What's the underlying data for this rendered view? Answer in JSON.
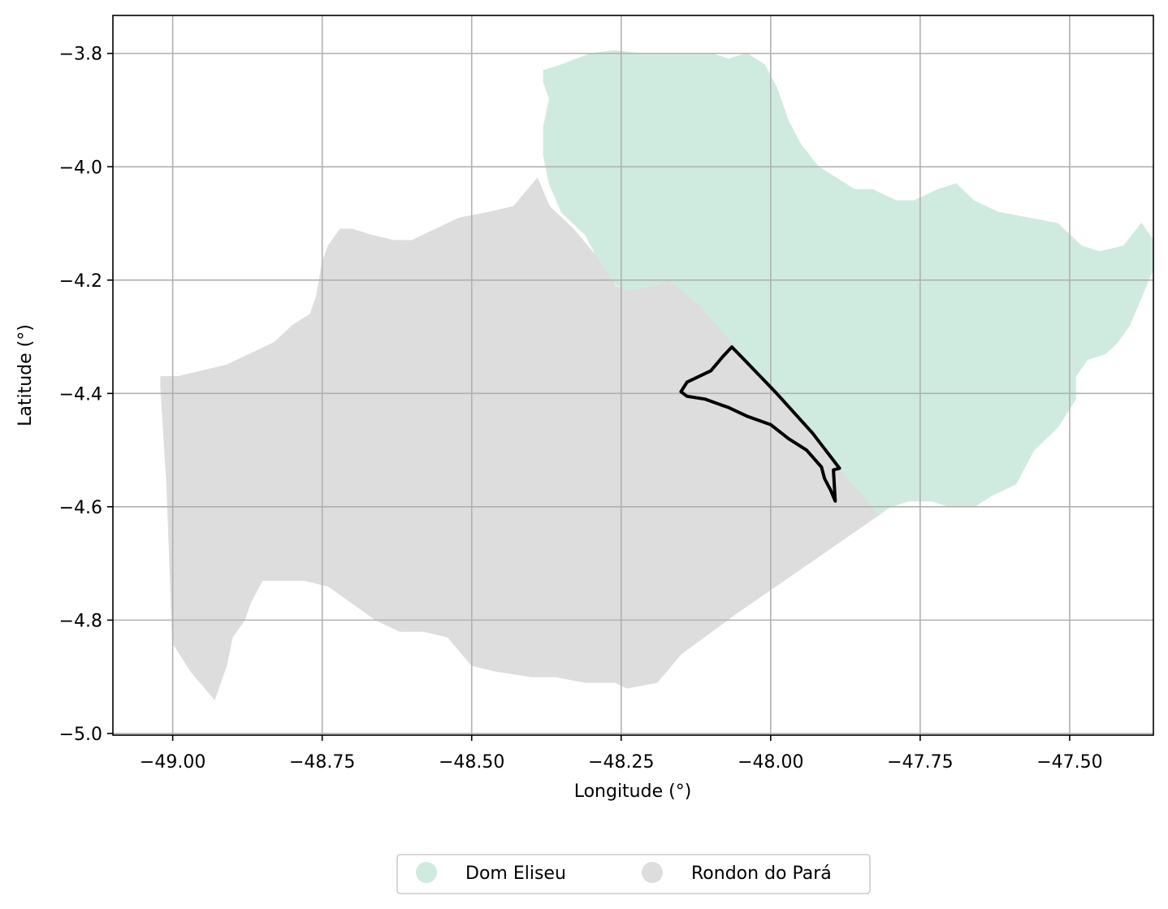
{
  "map": {
    "type": "choropleth-map",
    "xlabel": "Longitude (°)",
    "ylabel": "Latitude (°)",
    "xlim": [
      -49.1,
      -47.36
    ],
    "ylim": [
      -5.003,
      -3.733
    ],
    "x_ticks": [
      -49.0,
      -48.75,
      -48.5,
      -48.25,
      -48.0,
      -47.75,
      -47.5
    ],
    "x_tick_labels": [
      "−49.00",
      "−48.75",
      "−48.50",
      "−48.25",
      "−48.00",
      "−47.75",
      "−47.50"
    ],
    "y_ticks": [
      -3.8,
      -4.0,
      -4.2,
      -4.4,
      -4.6,
      -4.8,
      -5.0
    ],
    "y_tick_labels": [
      "−3.8",
      "−4.0",
      "−4.2",
      "−4.4",
      "−4.6",
      "−4.8",
      "−5.0"
    ],
    "grid": true,
    "legend_placement": "bottom-center, below axes",
    "regions": [
      {
        "name": "Dom Eliseu",
        "color": "#cfebdf",
        "outline": [
          [
            -48.38,
            -3.83
          ],
          [
            -48.35,
            -3.82
          ],
          [
            -48.3,
            -3.8
          ],
          [
            -48.26,
            -3.795
          ],
          [
            -48.22,
            -3.8
          ],
          [
            -48.18,
            -3.8
          ],
          [
            -48.14,
            -3.8
          ],
          [
            -48.1,
            -3.8
          ],
          [
            -48.07,
            -3.81
          ],
          [
            -48.04,
            -3.8
          ],
          [
            -48.01,
            -3.82
          ],
          [
            -47.99,
            -3.86
          ],
          [
            -47.97,
            -3.92
          ],
          [
            -47.95,
            -3.96
          ],
          [
            -47.92,
            -4.0
          ],
          [
            -47.89,
            -4.02
          ],
          [
            -47.86,
            -4.04
          ],
          [
            -47.83,
            -4.04
          ],
          [
            -47.79,
            -4.06
          ],
          [
            -47.76,
            -4.06
          ],
          [
            -47.72,
            -4.04
          ],
          [
            -47.69,
            -4.03
          ],
          [
            -47.66,
            -4.06
          ],
          [
            -47.62,
            -4.08
          ],
          [
            -47.57,
            -4.09
          ],
          [
            -47.52,
            -4.1
          ],
          [
            -47.48,
            -4.14
          ],
          [
            -47.45,
            -4.15
          ],
          [
            -47.41,
            -4.14
          ],
          [
            -47.38,
            -4.1
          ],
          [
            -47.36,
            -4.13
          ],
          [
            -47.36,
            -4.18
          ],
          [
            -47.38,
            -4.23
          ],
          [
            -47.4,
            -4.28
          ],
          [
            -47.42,
            -4.31
          ],
          [
            -47.44,
            -4.33
          ],
          [
            -47.47,
            -4.34
          ],
          [
            -47.49,
            -4.37
          ],
          [
            -47.49,
            -4.41
          ],
          [
            -47.52,
            -4.46
          ],
          [
            -47.56,
            -4.5
          ],
          [
            -47.59,
            -4.56
          ],
          [
            -47.63,
            -4.58
          ],
          [
            -47.66,
            -4.6
          ],
          [
            -47.7,
            -4.6
          ],
          [
            -47.73,
            -4.59
          ],
          [
            -47.77,
            -4.59
          ],
          [
            -47.8,
            -4.6
          ],
          [
            -47.82,
            -4.615
          ],
          [
            -47.88,
            -4.54
          ],
          [
            -47.95,
            -4.45
          ],
          [
            -48.05,
            -4.33
          ],
          [
            -48.12,
            -4.245
          ],
          [
            -48.17,
            -4.2
          ],
          [
            -48.21,
            -4.22
          ],
          [
            -48.24,
            -4.22
          ],
          [
            -48.27,
            -4.2
          ],
          [
            -48.31,
            -4.12
          ],
          [
            -48.35,
            -4.08
          ],
          [
            -48.37,
            -4.03
          ],
          [
            -48.38,
            -3.98
          ],
          [
            -48.38,
            -3.93
          ],
          [
            -48.37,
            -3.88
          ],
          [
            -48.38,
            -3.85
          ]
        ]
      },
      {
        "name": "Rondon do Pará",
        "color": "#dddddd",
        "outline": [
          [
            -49.02,
            -4.37
          ],
          [
            -48.99,
            -4.37
          ],
          [
            -48.95,
            -4.36
          ],
          [
            -48.91,
            -4.35
          ],
          [
            -48.87,
            -4.33
          ],
          [
            -48.83,
            -4.31
          ],
          [
            -48.8,
            -4.28
          ],
          [
            -48.77,
            -4.26
          ],
          [
            -48.76,
            -4.23
          ],
          [
            -48.75,
            -4.17
          ],
          [
            -48.74,
            -4.14
          ],
          [
            -48.72,
            -4.11
          ],
          [
            -48.7,
            -4.11
          ],
          [
            -48.67,
            -4.12
          ],
          [
            -48.63,
            -4.13
          ],
          [
            -48.6,
            -4.13
          ],
          [
            -48.56,
            -4.11
          ],
          [
            -48.52,
            -4.09
          ],
          [
            -48.47,
            -4.08
          ],
          [
            -48.43,
            -4.07
          ],
          [
            -48.39,
            -4.02
          ],
          [
            -48.37,
            -4.07
          ],
          [
            -48.33,
            -4.11
          ],
          [
            -48.29,
            -4.16
          ],
          [
            -48.26,
            -4.21
          ],
          [
            -48.24,
            -4.22
          ],
          [
            -48.19,
            -4.21
          ],
          [
            -48.17,
            -4.2
          ],
          [
            -48.12,
            -4.245
          ],
          [
            -48.05,
            -4.33
          ],
          [
            -47.95,
            -4.45
          ],
          [
            -47.88,
            -4.54
          ],
          [
            -47.82,
            -4.615
          ],
          [
            -47.95,
            -4.71
          ],
          [
            -48.06,
            -4.79
          ],
          [
            -48.15,
            -4.86
          ],
          [
            -48.19,
            -4.91
          ],
          [
            -48.24,
            -4.92
          ],
          [
            -48.26,
            -4.91
          ],
          [
            -48.31,
            -4.91
          ],
          [
            -48.36,
            -4.9
          ],
          [
            -48.4,
            -4.9
          ],
          [
            -48.46,
            -4.89
          ],
          [
            -48.5,
            -4.88
          ],
          [
            -48.54,
            -4.83
          ],
          [
            -48.58,
            -4.82
          ],
          [
            -48.62,
            -4.82
          ],
          [
            -48.66,
            -4.8
          ],
          [
            -48.7,
            -4.77
          ],
          [
            -48.74,
            -4.74
          ],
          [
            -48.78,
            -4.73
          ],
          [
            -48.82,
            -4.73
          ],
          [
            -48.85,
            -4.73
          ],
          [
            -48.87,
            -4.77
          ],
          [
            -48.88,
            -4.8
          ],
          [
            -48.9,
            -4.83
          ],
          [
            -48.91,
            -4.88
          ],
          [
            -48.93,
            -4.94
          ],
          [
            -48.97,
            -4.89
          ],
          [
            -49.0,
            -4.84
          ],
          [
            -49.01,
            -4.56
          ],
          [
            -49.02,
            -4.39
          ]
        ]
      }
    ],
    "boundary_overlay": {
      "color": "#000000",
      "outline": [
        [
          -48.15,
          -4.397
        ],
        [
          -48.14,
          -4.38
        ],
        [
          -48.1,
          -4.36
        ],
        [
          -48.08,
          -4.335
        ],
        [
          -48.065,
          -4.318
        ],
        [
          -48.04,
          -4.345
        ],
        [
          -47.99,
          -4.4
        ],
        [
          -47.93,
          -4.47
        ],
        [
          -47.885,
          -4.532
        ],
        [
          -47.895,
          -4.535
        ],
        [
          -47.892,
          -4.59
        ],
        [
          -47.9,
          -4.57
        ],
        [
          -47.91,
          -4.55
        ],
        [
          -47.915,
          -4.53
        ],
        [
          -47.94,
          -4.5
        ],
        [
          -47.97,
          -4.48
        ],
        [
          -48.0,
          -4.455
        ],
        [
          -48.04,
          -4.44
        ],
        [
          -48.07,
          -4.425
        ],
        [
          -48.11,
          -4.41
        ],
        [
          -48.14,
          -4.405
        ]
      ]
    }
  },
  "legend": {
    "items": [
      {
        "label": "Dom Eliseu",
        "color": "#cfebdf"
      },
      {
        "label": "Rondon do Pará",
        "color": "#dddddd"
      }
    ]
  }
}
